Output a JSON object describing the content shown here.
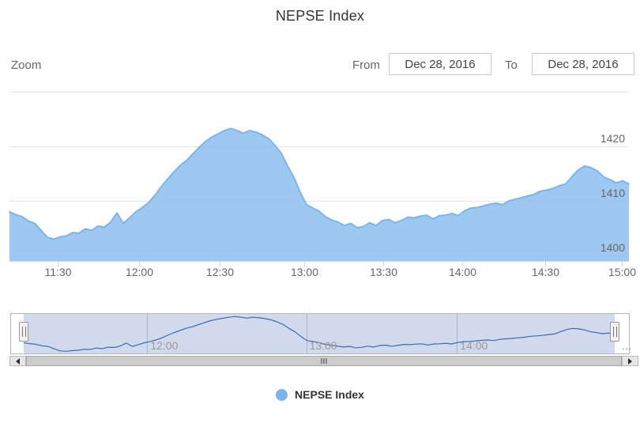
{
  "title": "NEPSE Index",
  "range_selector": {
    "zoom_label": "Zoom",
    "from_label": "From",
    "from_value": "Dec 28, 2016",
    "to_label": "To",
    "to_value": "Dec 28, 2016"
  },
  "legend": {
    "label": "NEPSE Index",
    "marker_color": "#7cb5ec"
  },
  "icons": {
    "scrollbar_left": "left-arrow-icon",
    "scrollbar_right": "right-arrow-icon",
    "scrollbar_grip": "grip-icon",
    "navigator_handles": "drag-handle-icon"
  },
  "chart_data": {
    "type": "area",
    "title": "NEPSE Index",
    "legend_position": "bottom",
    "grid": true,
    "series": [
      {
        "name": "NEPSE Index",
        "color": "#7cb5ec",
        "fill_color": "rgba(124,181,236,0.75)",
        "values": [
          1408.0,
          1407.5,
          1407.1,
          1406.3,
          1405.9,
          1404.6,
          1403.3,
          1403.0,
          1403.4,
          1403.6,
          1404.2,
          1404.1,
          1404.9,
          1404.6,
          1405.4,
          1405.2,
          1406.1,
          1407.8,
          1405.9,
          1406.9,
          1408.0,
          1408.8,
          1409.7,
          1411.0,
          1412.6,
          1414.0,
          1415.3,
          1416.5,
          1417.4,
          1418.6,
          1419.8,
          1420.9,
          1421.7,
          1422.3,
          1422.9,
          1423.3,
          1422.9,
          1422.4,
          1422.9,
          1422.6,
          1422.1,
          1421.4,
          1420.2,
          1418.7,
          1416.4,
          1414.3,
          1411.6,
          1409.3,
          1408.7,
          1408.1,
          1407.1,
          1406.5,
          1406.1,
          1405.5,
          1405.9,
          1405.1,
          1405.3,
          1406.0,
          1405.5,
          1406.4,
          1406.6,
          1406.0,
          1406.4,
          1407.0,
          1406.9,
          1407.2,
          1407.4,
          1406.7,
          1407.3,
          1407.4,
          1407.7,
          1407.3,
          1408.2,
          1408.7,
          1408.8,
          1409.1,
          1409.4,
          1409.6,
          1409.3,
          1410.0,
          1410.3,
          1410.6,
          1410.9,
          1411.2,
          1411.8,
          1412.0,
          1412.3,
          1412.8,
          1413.1,
          1414.5,
          1415.7,
          1416.4,
          1416.1,
          1415.5,
          1414.4,
          1413.9,
          1413.3,
          1413.7,
          1413.1
        ]
      }
    ],
    "x_axis": {
      "ticks": [
        {
          "label": "11:30",
          "f": 0.0783
        },
        {
          "label": "12:00",
          "f": 0.2087
        },
        {
          "label": "12:30",
          "f": 0.3391
        },
        {
          "label": "13:00",
          "f": 0.4761
        },
        {
          "label": "13:30",
          "f": 0.6033
        },
        {
          "label": "14:00",
          "f": 0.7309
        },
        {
          "label": "14:30",
          "f": 0.8648
        },
        {
          "label": "15:00",
          "f": 0.9885
        }
      ]
    },
    "y_axis": {
      "ticks": [
        {
          "label": "1400",
          "value": 1400
        },
        {
          "label": "1410",
          "value": 1410
        },
        {
          "label": "1420",
          "value": 1420
        },
        {
          "label": "",
          "value": 1430
        }
      ],
      "range": [
        1399.0,
        1430.6
      ]
    },
    "navigator": {
      "line_color": "#335cad",
      "mask_color": "rgba(102,133,194,0.3)",
      "range": [
        1401.3,
        1425.3
      ],
      "ticks": [
        {
          "label": "12:00",
          "f": 0.209
        },
        {
          "label": "13:00",
          "f": 0.478
        },
        {
          "label": "14:00",
          "f": 0.733
        }
      ],
      "clipped_label": "…"
    }
  }
}
